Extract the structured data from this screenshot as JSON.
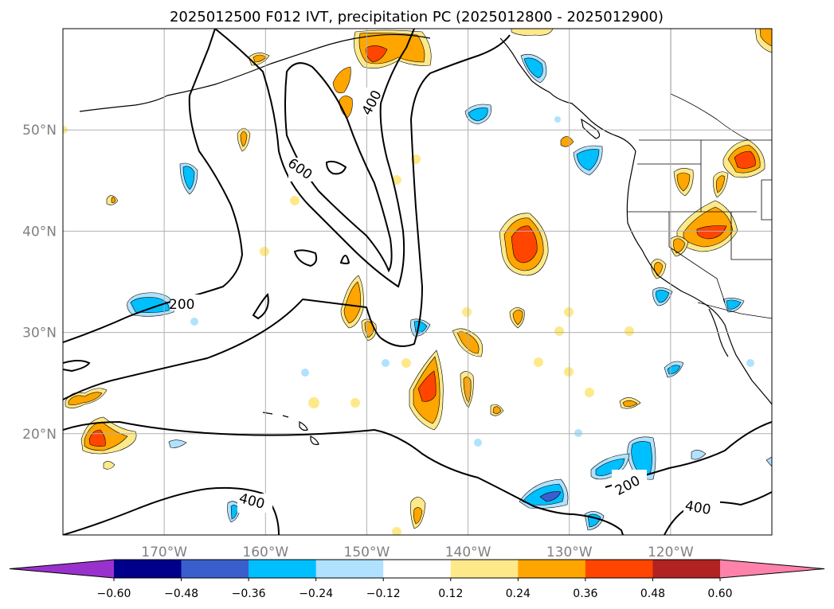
{
  "chart_data": {
    "type": "map",
    "title": "2025012500 F012 IVT, precipitation PC (2025012800 - 2025012900)",
    "x_ticks": [
      {
        "value": -170,
        "label": "170°W"
      },
      {
        "value": -160,
        "label": "160°W"
      },
      {
        "value": -150,
        "label": "150°W"
      },
      {
        "value": -140,
        "label": "140°W"
      },
      {
        "value": -130,
        "label": "130°W"
      },
      {
        "value": -120,
        "label": "120°W"
      }
    ],
    "y_ticks": [
      {
        "value": 20,
        "label": "20°N"
      },
      {
        "value": 30,
        "label": "30°N"
      },
      {
        "value": 40,
        "label": "40°N"
      },
      {
        "value": 50,
        "label": "50°N"
      }
    ],
    "lon_range": [
      -180,
      -110
    ],
    "lat_range": [
      10,
      60
    ],
    "grid": true,
    "ivt_contour_labels": [
      "200",
      "400",
      "600"
    ],
    "colorbar": {
      "orientation": "horizontal",
      "extend": "both",
      "colors": [
        "#9932cc",
        "#00008b",
        "#3a5fcd",
        "#00bfff",
        "#b0e2ff",
        "#ffffff",
        "#fee98a",
        "#ffa500",
        "#ff4500",
        "#b22222",
        "#ff82ab"
      ],
      "tick_labels": [
        "−0.60",
        "−0.48",
        "−0.36",
        "−0.24",
        "−0.12",
        "0.12",
        "0.24",
        "0.36",
        "0.48",
        "0.60"
      ]
    }
  }
}
